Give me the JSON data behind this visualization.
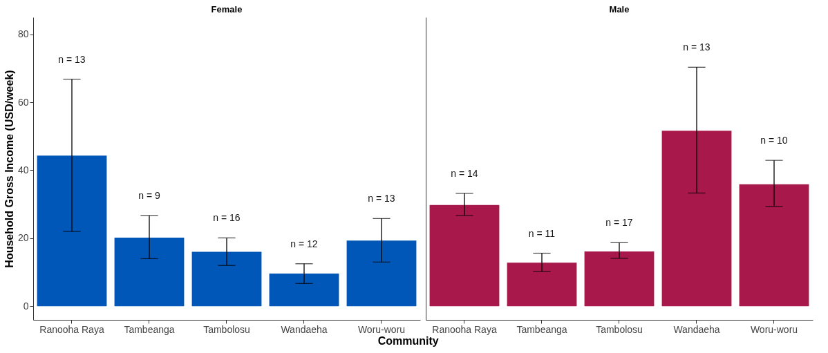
{
  "chart_data": [
    {
      "type": "bar",
      "title": "Female",
      "ylabel": "Household Gross Income (USD/week)",
      "xlabel": "Community",
      "categories": [
        "Ranooha Raya",
        "Tambeanga",
        "Tambolosu",
        "Wandaeha",
        "Woru-woru"
      ],
      "color": "#0057b8",
      "values": [
        44.3,
        20.2,
        16,
        9.6,
        19.3
      ],
      "errors": [
        [
          22,
          66.8
        ],
        [
          14,
          26.7
        ],
        [
          12,
          20.1
        ],
        [
          6.7,
          12.5
        ],
        [
          13,
          25.8
        ]
      ],
      "annotations": [
        "n = 13",
        "n = 9",
        "n = 16",
        "n = 12",
        "n = 13"
      ],
      "ylim": [
        -4,
        85
      ],
      "yticks": [
        0,
        20,
        40,
        60,
        80
      ],
      "grid": false
    },
    {
      "type": "bar",
      "title": "Male",
      "categories": [
        "Ranooha Raya",
        "Tambeanga",
        "Tambolosu",
        "Wandaeha",
        "Woru-woru"
      ],
      "color": "#a8184a",
      "values": [
        29.8,
        12.8,
        16.1,
        51.6,
        35.9
      ],
      "errors": [
        [
          26.7,
          33.2
        ],
        [
          10.2,
          15.6
        ],
        [
          14.1,
          18.7
        ],
        [
          33.3,
          70.3
        ],
        [
          29.4,
          42.9
        ]
      ],
      "annotations": [
        "n = 14",
        "n = 11",
        "n = 17",
        "n = 13",
        "n = 10"
      ],
      "ylim": [
        -4,
        85
      ],
      "yticks": [
        0,
        20,
        40,
        60,
        80
      ],
      "grid": false,
      "tick_labels": "x"
    }
  ]
}
